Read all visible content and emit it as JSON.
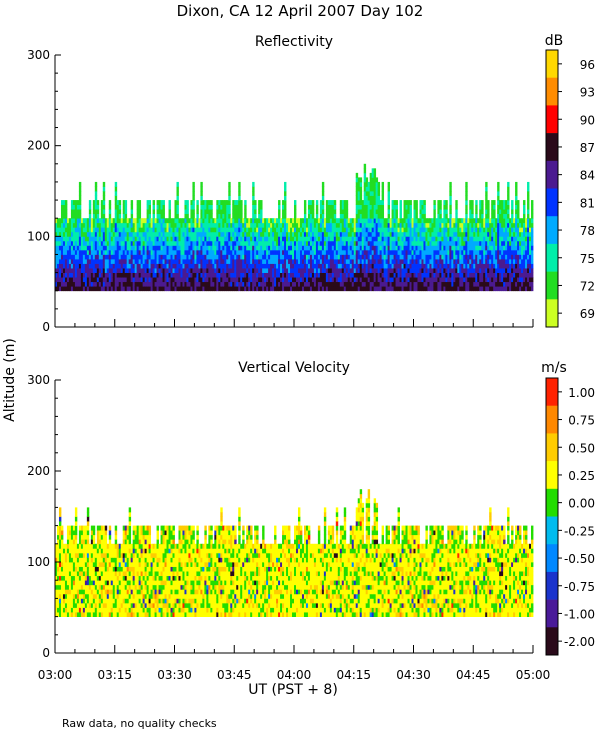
{
  "page": {
    "title": "Dixon, CA 12 April 2007  Day 102",
    "xlabel": "UT  (PST + 8)",
    "ylabel": "Altitude (m)",
    "footnote": "Raw data, no quality checks"
  },
  "chart_data": [
    {
      "type": "heatmap",
      "title": "Reflectivity",
      "colorbar_unit": "dB",
      "colorbar_labels": [
        "96",
        "93",
        "90",
        "87",
        "84",
        "81",
        "78",
        "75",
        "72",
        "69"
      ],
      "colorbar_colors": [
        "#ffd800",
        "#ff8c00",
        "#ff0000",
        "#2a0a1a",
        "#4b1a90",
        "#0033ff",
        "#00aaff",
        "#00eeaa",
        "#22dd22",
        "#ccff22"
      ],
      "x_ticks": [
        "03:00",
        "03:15",
        "03:30",
        "03:45",
        "04:00",
        "04:15",
        "04:30",
        "04:45",
        "05:00"
      ],
      "x_range_minutes_ut": [
        180,
        300
      ],
      "y_ticks": [
        "0",
        "100",
        "200",
        "300"
      ],
      "ylim": [
        0,
        300
      ],
      "echo_base_altitude": 40,
      "echo_top_altitude_typical": 120,
      "echo_top_altitude_max": 180
    },
    {
      "type": "heatmap",
      "title": "Vertical Velocity",
      "colorbar_unit": "m/s",
      "colorbar_labels": [
        "1.00",
        "0.75",
        "0.50",
        "0.25",
        "0.00",
        "-0.25",
        "-0.50",
        "-0.75",
        "-1.00",
        "-2.00"
      ],
      "colorbar_colors": [
        "#ff2200",
        "#ff8800",
        "#ffcc00",
        "#ffff00",
        "#22dd00",
        "#00bbee",
        "#0088ff",
        "#1a33cc",
        "#4a1a99",
        "#2a0a1a"
      ],
      "x_ticks": [
        "03:00",
        "03:15",
        "03:30",
        "03:45",
        "04:00",
        "04:15",
        "04:30",
        "04:45",
        "05:00"
      ],
      "x_range_minutes_ut": [
        180,
        300
      ],
      "y_ticks": [
        "0",
        "100",
        "200",
        "300"
      ],
      "ylim": [
        0,
        300
      ],
      "echo_base_altitude": 40,
      "echo_top_altitude_typical": 120,
      "echo_top_altitude_max": 180
    }
  ]
}
